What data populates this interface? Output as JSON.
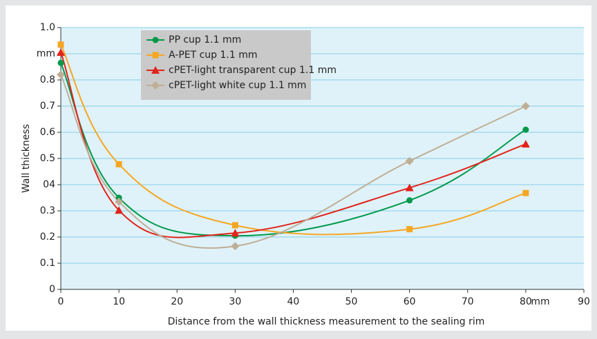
{
  "chart_data": {
    "type": "line",
    "xlabel": "Distance from the wall thickness measurement to the sealing rim",
    "ylabel": "Wall thickness",
    "x_unit": "mm",
    "x": [
      0,
      10,
      30,
      60,
      80
    ],
    "xlim": [
      0,
      90
    ],
    "xticks": [
      0,
      10,
      20,
      30,
      40,
      50,
      60,
      70,
      80,
      90
    ],
    "ylim": [
      0,
      1
    ],
    "yticks": [
      0,
      0.1,
      0.2,
      0.3,
      {
        "value": 0.4,
        "label": "04"
      },
      0.5,
      0.6,
      0.7,
      0.8,
      {
        "value": 0.9,
        "label": "mm"
      },
      {
        "value": 1,
        "label": "1.0"
      }
    ],
    "grid": true,
    "legend": "upper left",
    "series": [
      {
        "name": "PP cup 1.1 mm",
        "color": "#00994a",
        "marker": "circle",
        "values": [
          0.865,
          0.35,
          0.205,
          0.34,
          0.61
        ]
      },
      {
        "name": "A-PET cup 1.1 mm",
        "color": "#f6a623",
        "marker": "square",
        "values": [
          0.935,
          0.478,
          0.245,
          0.23,
          0.368
        ]
      },
      {
        "name": "cPET-light transparent cup 1.1 mm",
        "color": "#e2231a",
        "marker": "triangle",
        "values": [
          0.905,
          0.302,
          0.215,
          0.388,
          0.555
        ]
      },
      {
        "name": "cPET-light white cup 1.1 mm",
        "color": "#bfae96",
        "marker": "diamond",
        "values": [
          0.82,
          0.335,
          0.165,
          0.49,
          0.7
        ]
      }
    ]
  }
}
